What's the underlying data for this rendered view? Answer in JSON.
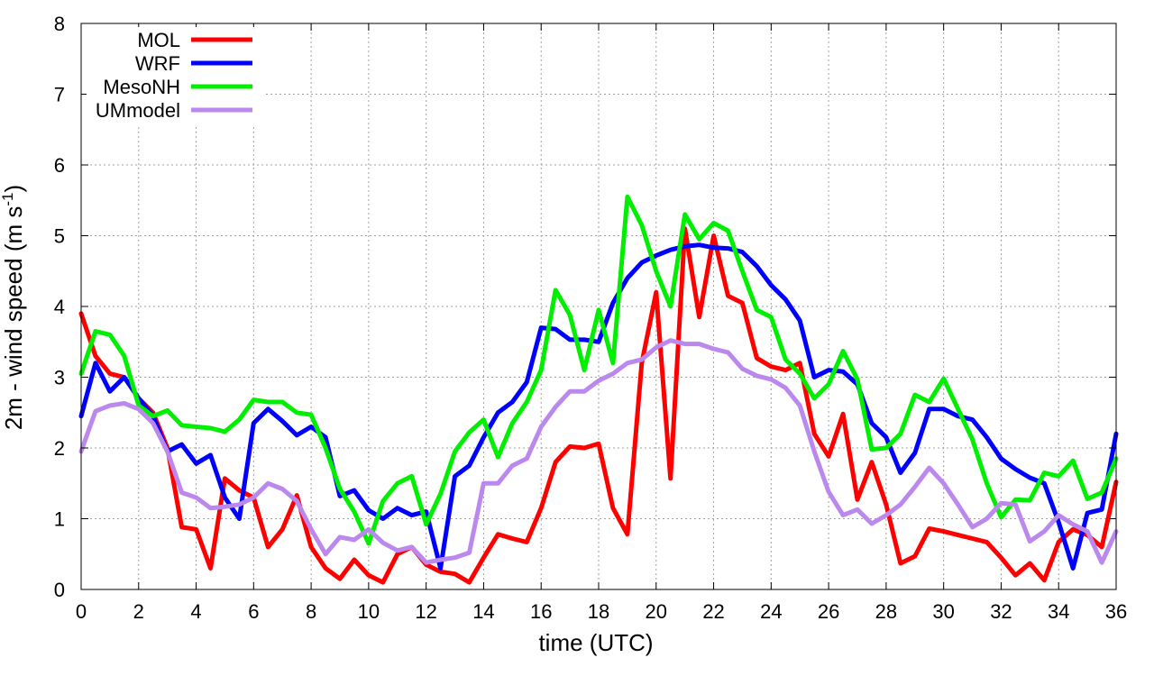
{
  "chart_data": {
    "type": "line",
    "xlabel": "time (UTC)",
    "ylabel": "2m - wind speed  (m s",
    "ylabel_sup": "-1",
    "ylabel_tail": ")",
    "xlim": [
      0,
      36
    ],
    "ylim": [
      0,
      8
    ],
    "xticks": [
      "0",
      "2",
      "4",
      "6",
      "8",
      "10",
      "12",
      "14",
      "16",
      "18",
      "20",
      "22",
      "24",
      "26",
      "28",
      "30",
      "32",
      "34",
      "36"
    ],
    "yticks": [
      "0",
      "1",
      "2",
      "3",
      "4",
      "5",
      "6",
      "7",
      "8"
    ],
    "grid": true,
    "legend_position": "top-left",
    "x": [
      0,
      0.5,
      1,
      1.5,
      2,
      2.5,
      3,
      3.5,
      4,
      4.5,
      5,
      5.5,
      6,
      6.5,
      7,
      7.5,
      8,
      8.5,
      9,
      9.5,
      10,
      10.5,
      11,
      11.5,
      12,
      12.5,
      13,
      13.5,
      14,
      14.5,
      15,
      15.5,
      16,
      16.5,
      17,
      17.5,
      18,
      18.5,
      19,
      19.5,
      20,
      20.5,
      21,
      21.5,
      22,
      22.5,
      23,
      23.5,
      24,
      24.5,
      25,
      25.5,
      26,
      26.5,
      27,
      27.5,
      28,
      28.5,
      29,
      29.5,
      30,
      30.5,
      31,
      31.5,
      32,
      32.5,
      33,
      33.5,
      34,
      34.5,
      35,
      35.5,
      36
    ],
    "series": [
      {
        "name": "MOL",
        "color": "#ff0000",
        "values": [
          3.9,
          3.3,
          3.05,
          3.0,
          2.7,
          2.5,
          2.0,
          0.88,
          0.85,
          0.3,
          1.57,
          1.4,
          1.3,
          0.6,
          0.85,
          1.33,
          0.6,
          0.3,
          0.15,
          0.42,
          0.2,
          0.1,
          0.5,
          0.6,
          0.35,
          0.25,
          0.22,
          0.1,
          0.45,
          0.78,
          0.72,
          0.67,
          1.15,
          1.8,
          2.02,
          2.0,
          2.06,
          1.15,
          0.78,
          3.2,
          4.2,
          1.57,
          5.1,
          3.85,
          5.0,
          4.15,
          4.05,
          3.27,
          3.15,
          3.1,
          3.2,
          2.2,
          1.88,
          2.48,
          1.27,
          1.8,
          1.2,
          0.37,
          0.47,
          0.86,
          0.82,
          0.77,
          0.72,
          0.67,
          0.45,
          0.2,
          0.37,
          0.13,
          0.67,
          0.85,
          0.77,
          0.6,
          1.52
        ]
      },
      {
        "name": "WRF",
        "color": "#0000ff",
        "values": [
          2.45,
          3.2,
          2.8,
          3.0,
          2.7,
          2.45,
          1.95,
          2.05,
          1.78,
          1.9,
          1.3,
          1.0,
          2.35,
          2.55,
          2.38,
          2.18,
          2.3,
          2.15,
          1.32,
          1.4,
          1.12,
          1.0,
          1.15,
          1.05,
          1.1,
          0.3,
          1.6,
          1.75,
          2.15,
          2.5,
          2.65,
          2.93,
          3.7,
          3.68,
          3.53,
          3.53,
          3.5,
          4.05,
          4.4,
          4.62,
          4.72,
          4.8,
          4.85,
          4.87,
          4.83,
          4.82,
          4.77,
          4.57,
          4.3,
          4.1,
          3.8,
          3.0,
          3.1,
          3.08,
          2.9,
          2.35,
          2.15,
          1.65,
          1.93,
          2.55,
          2.55,
          2.45,
          2.4,
          2.15,
          1.85,
          1.7,
          1.58,
          1.5,
          0.95,
          0.3,
          1.08,
          1.13,
          2.2
        ]
      },
      {
        "name": "MesoNH",
        "color": "#00ee00",
        "values": [
          3.05,
          3.65,
          3.6,
          3.3,
          2.6,
          2.45,
          2.53,
          2.32,
          2.3,
          2.28,
          2.23,
          2.4,
          2.68,
          2.65,
          2.65,
          2.5,
          2.47,
          2.0,
          1.42,
          1.1,
          0.65,
          1.25,
          1.5,
          1.6,
          0.92,
          1.35,
          1.95,
          2.22,
          2.4,
          1.87,
          2.35,
          2.65,
          3.1,
          4.23,
          3.88,
          3.1,
          3.95,
          3.2,
          5.55,
          5.15,
          4.5,
          4.0,
          5.3,
          4.95,
          5.18,
          5.07,
          4.5,
          3.95,
          3.85,
          3.25,
          3.05,
          2.7,
          2.9,
          3.37,
          2.97,
          1.98,
          2.0,
          2.2,
          2.75,
          2.65,
          2.98,
          2.55,
          2.12,
          1.5,
          1.02,
          1.27,
          1.26,
          1.65,
          1.6,
          1.82,
          1.28,
          1.37,
          1.85
        ]
      },
      {
        "name": "UMmodel",
        "color": "#bb88ee",
        "values": [
          1.95,
          2.52,
          2.6,
          2.63,
          2.55,
          2.35,
          1.95,
          1.37,
          1.3,
          1.15,
          1.17,
          1.2,
          1.3,
          1.5,
          1.42,
          1.25,
          0.85,
          0.5,
          0.74,
          0.7,
          0.85,
          0.66,
          0.55,
          0.6,
          0.38,
          0.42,
          0.45,
          0.52,
          1.5,
          1.5,
          1.75,
          1.85,
          2.3,
          2.58,
          2.8,
          2.8,
          2.95,
          3.05,
          3.2,
          3.25,
          3.42,
          3.52,
          3.47,
          3.47,
          3.4,
          3.35,
          3.12,
          3.02,
          2.97,
          2.85,
          2.6,
          1.95,
          1.38,
          1.05,
          1.13,
          0.93,
          1.05,
          1.2,
          1.45,
          1.72,
          1.5,
          1.2,
          0.88,
          1.0,
          1.22,
          1.2,
          0.68,
          0.82,
          1.05,
          0.92,
          0.82,
          0.38,
          0.82
        ]
      }
    ]
  }
}
